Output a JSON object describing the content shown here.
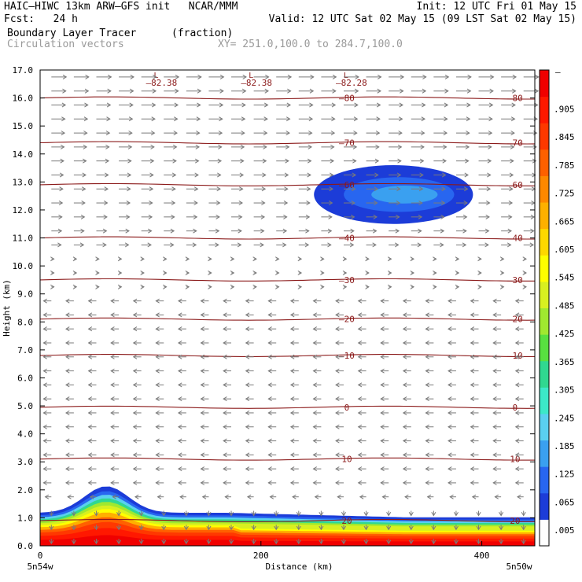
{
  "header": {
    "left_line1": "HAIC–HIWC 13km ARW–GFS init   NCAR/MMM",
    "left_line2": "Fcst:   24 h",
    "right_line1": "Init: 12 UTC Fri 01 May 15",
    "right_line2": "Valid: 12 UTC Sat 02 May 15 (09 LST Sat 02 May 15)",
    "field1_name": "Boundary Layer Tracer",
    "field1_units": "(fraction)",
    "field2_name": "Circulation vectors",
    "xy_range": "XY= 251.0,100.0 to 284.7,100.0"
  },
  "chart_data": {
    "type": "heatmap",
    "title": "Boundary Layer Tracer",
    "units": "(fraction)",
    "xlabel": "Distance (km)",
    "ylabel": "Height (km)",
    "xlim": [
      0,
      448
    ],
    "ylim": [
      0,
      17
    ],
    "x_ticks": [
      0,
      200,
      400
    ],
    "y_ticks": [
      0.0,
      1.0,
      2.0,
      3.0,
      4.0,
      5.0,
      6.0,
      7.0,
      8.0,
      9.0,
      10.0,
      11.0,
      12.0,
      13.0,
      14.0,
      15.0,
      16.0,
      17.0
    ],
    "x_endpoint_labels": [
      "5n54w",
      "5n50w"
    ],
    "colorbar": {
      "labels": [
        ".005",
        ".065",
        ".125",
        ".185",
        ".245",
        ".305",
        ".365",
        ".425",
        ".485",
        ".545",
        ".605",
        ".665",
        ".725",
        ".785",
        ".845",
        ".905"
      ],
      "top_label": "–",
      "colors": [
        "#ffffff",
        "#1c3cd8",
        "#2866f0",
        "#3aa0f0",
        "#5ad0f0",
        "#3ce8c8",
        "#30d890",
        "#58e040",
        "#a0e830",
        "#d8f020",
        "#ffff00",
        "#ffd800",
        "#ffb000",
        "#ff8800",
        "#ff6000",
        "#ff3800",
        "#ff1800",
        "#f00000"
      ]
    },
    "temperature_contours": [
      {
        "label": "–80",
        "height": 16.0
      },
      {
        "label": "–70",
        "height": 14.4
      },
      {
        "label": "–60",
        "height": 12.9
      },
      {
        "label": "–40",
        "height": 11.0
      },
      {
        "label": "–30",
        "height": 9.5
      },
      {
        "label": "–20",
        "height": 8.1
      },
      {
        "label": "–10",
        "height": 6.8
      },
      {
        "label": "0",
        "height": 4.95
      },
      {
        "label": "10",
        "height": 3.1
      },
      {
        "label": "20",
        "height": 0.9
      }
    ],
    "minima_labels": [
      {
        "text": "–82.38",
        "x": 110
      },
      {
        "text": "–82.38",
        "x": 196
      },
      {
        "text": "–82.28",
        "x": 282
      }
    ],
    "minima_marker": "L",
    "vectors": "Circulation vectors"
  }
}
